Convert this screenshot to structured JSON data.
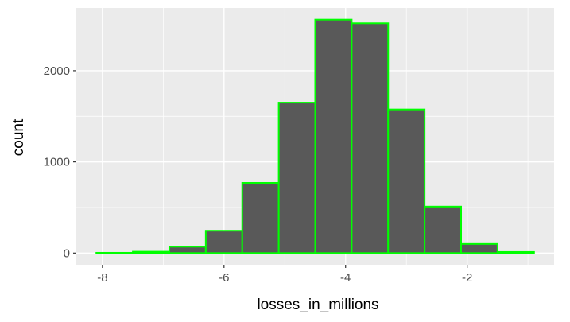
{
  "chart_data": {
    "type": "bar",
    "subtype": "histogram",
    "title": "",
    "xlabel": "losses_in_millions",
    "ylabel": "count",
    "bins": [
      {
        "x0": -8.1,
        "x1": -7.5,
        "count": 3
      },
      {
        "x0": -7.5,
        "x1": -6.9,
        "count": 15
      },
      {
        "x0": -6.9,
        "x1": -6.3,
        "count": 70
      },
      {
        "x0": -6.3,
        "x1": -5.7,
        "count": 245
      },
      {
        "x0": -5.7,
        "x1": -5.1,
        "count": 770
      },
      {
        "x0": -5.1,
        "x1": -4.5,
        "count": 1650
      },
      {
        "x0": -4.5,
        "x1": -3.9,
        "count": 2560
      },
      {
        "x0": -3.9,
        "x1": -3.3,
        "count": 2520
      },
      {
        "x0": -3.3,
        "x1": -2.7,
        "count": 1575
      },
      {
        "x0": -2.7,
        "x1": -2.1,
        "count": 510
      },
      {
        "x0": -2.1,
        "x1": -1.5,
        "count": 100
      },
      {
        "x0": -1.5,
        "x1": -0.9,
        "count": 12
      }
    ],
    "xlim": [
      -8.43,
      -0.57
    ],
    "ylim": [
      -128,
      2688
    ],
    "x_ticks": [
      -8,
      -6,
      -4,
      -2
    ],
    "x_tick_labels": [
      "-8",
      "-6",
      "-4",
      "-2"
    ],
    "y_ticks": [
      0,
      1000,
      2000
    ],
    "y_tick_labels": [
      "0",
      "1000",
      "2000"
    ],
    "grid": true,
    "colors": {
      "panel": "#ebebeb",
      "grid_major": "#ffffff",
      "bar_fill": "#595959",
      "bar_outline": "#00ff00",
      "tick_label": "#4d4d4d",
      "axis_title": "#000000"
    }
  }
}
